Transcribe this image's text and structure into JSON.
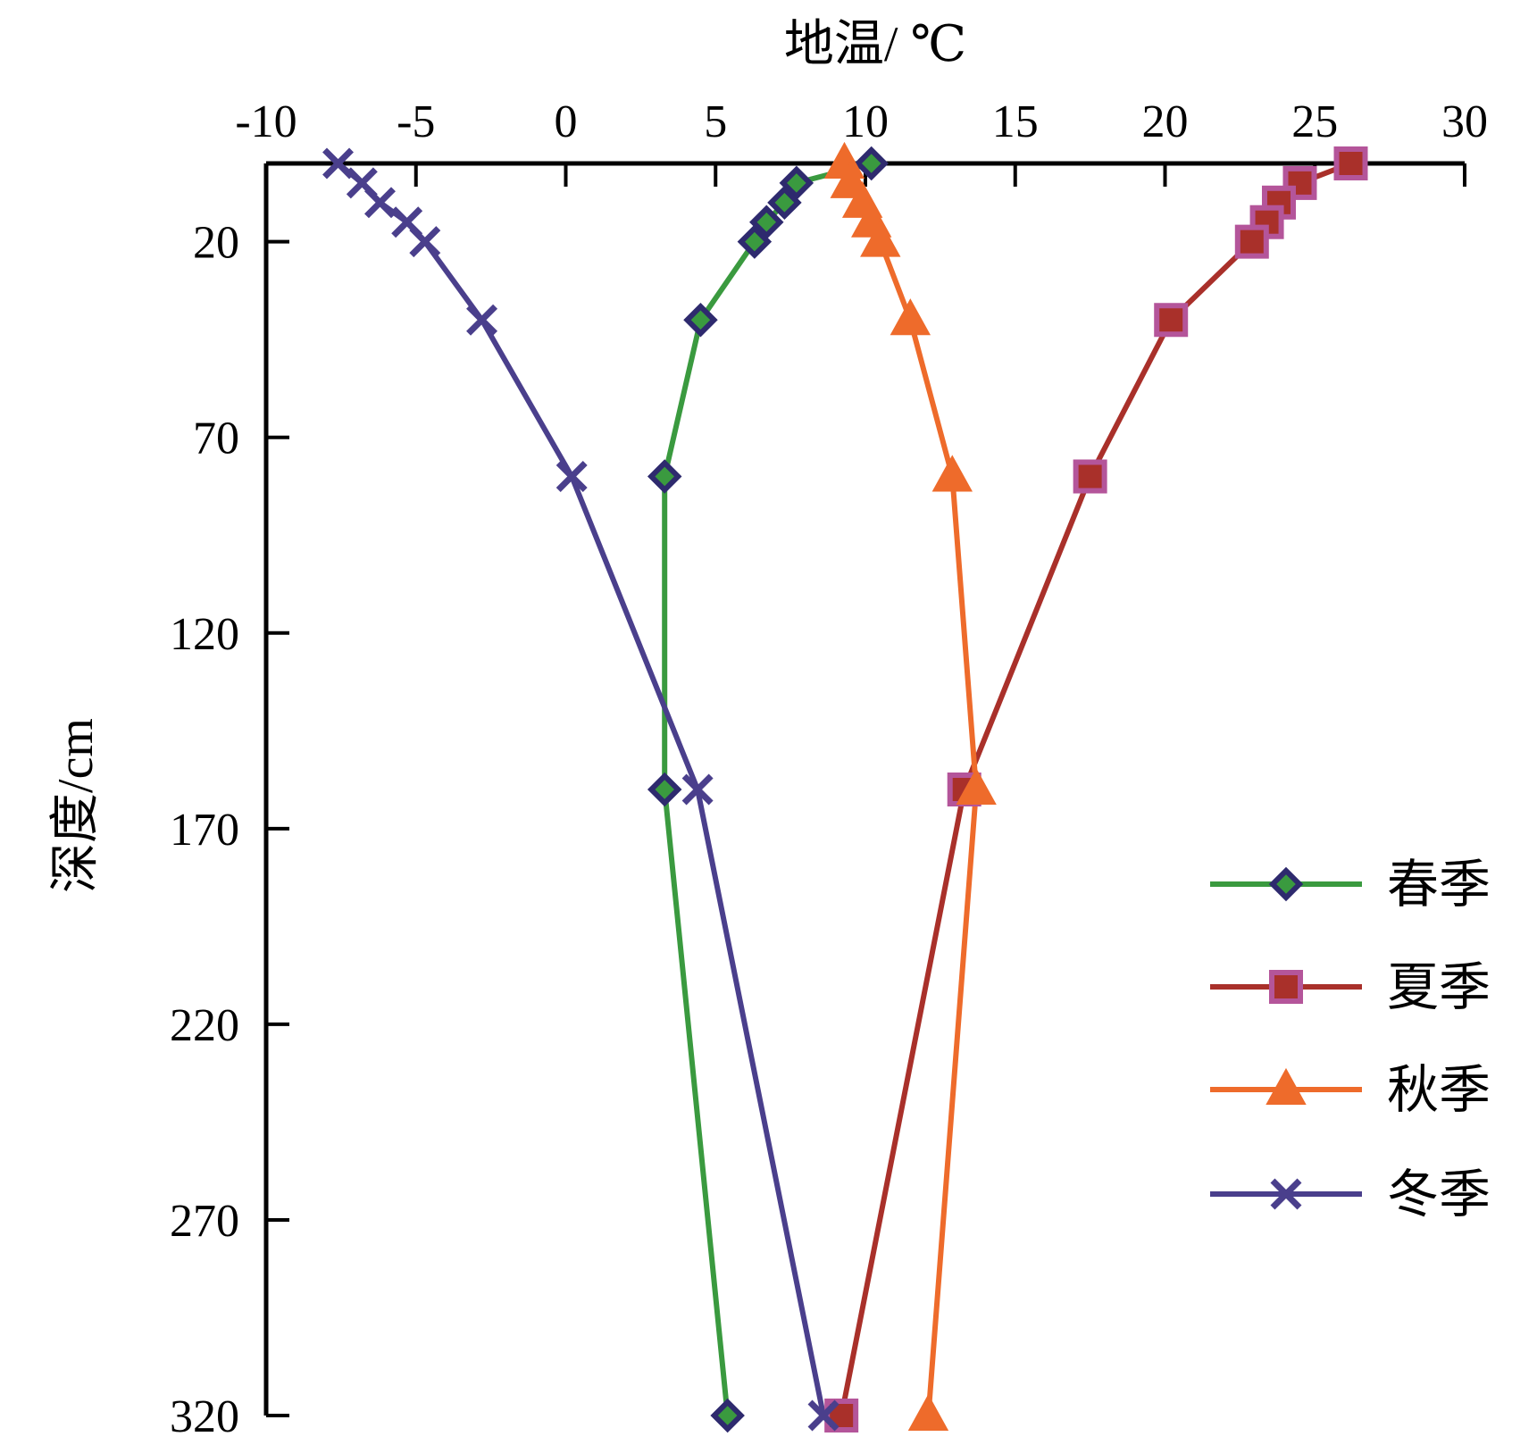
{
  "chart_data": {
    "type": "line",
    "xlabel": "地温/ ℃",
    "ylabel": "深度/cm",
    "x_axis_position": "top",
    "y_axis_inverted": true,
    "xlim": [
      -10,
      30
    ],
    "ylim": [
      0,
      320
    ],
    "x_ticks": [
      -10,
      -5,
      0,
      5,
      10,
      15,
      20,
      25,
      30
    ],
    "y_ticks": [
      20,
      70,
      120,
      170,
      220,
      270,
      320
    ],
    "grid": false,
    "legend_position": "right",
    "depths": [
      0,
      5,
      10,
      15,
      20,
      40,
      80,
      160,
      320
    ],
    "series": [
      {
        "name": "春季",
        "color": "#3a9a3f",
        "marker": "diamond",
        "marker_color": "#2e2a6e",
        "values": [
          10.2,
          7.7,
          7.3,
          6.7,
          6.3,
          4.5,
          3.3,
          3.3,
          5.4
        ]
      },
      {
        "name": "夏季",
        "color": "#a9302a",
        "marker": "square",
        "marker_color": "#b4559a",
        "values": [
          26.2,
          24.5,
          23.8,
          23.4,
          22.9,
          20.2,
          17.5,
          13.3,
          9.2
        ]
      },
      {
        "name": "秋季",
        "color": "#ee6b2b",
        "marker": "triangle",
        "marker_color": "#ee6b2b",
        "values": [
          9.3,
          9.5,
          9.9,
          10.2,
          10.5,
          11.5,
          12.9,
          13.7,
          12.1
        ]
      },
      {
        "name": "冬季",
        "color": "#4a3f8c",
        "marker": "x",
        "marker_color": "#4a3f8c",
        "values": [
          -7.6,
          -6.8,
          -6.2,
          -5.3,
          -4.7,
          -2.8,
          0.2,
          4.4,
          8.6
        ]
      }
    ]
  }
}
